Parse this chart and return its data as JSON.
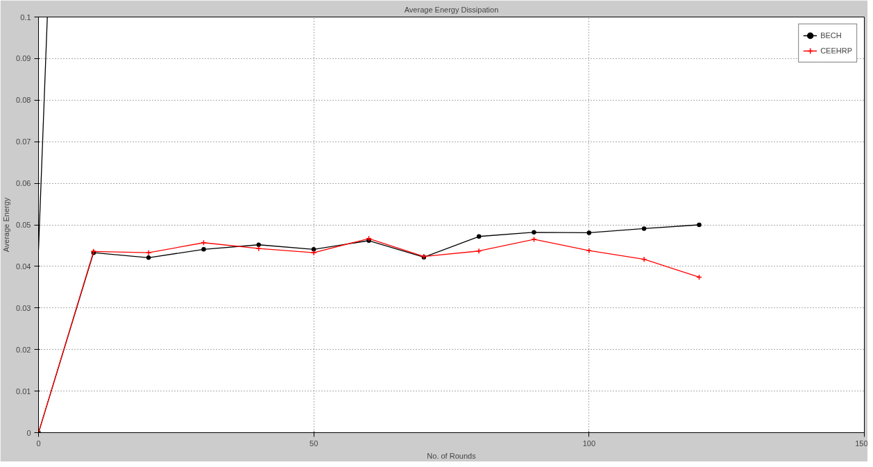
{
  "chart_data": {
    "type": "line",
    "title": "Average Energy Dissipation",
    "xlabel": "No. of Rounds",
    "ylabel": "Average Energy",
    "x": [
      0,
      10,
      20,
      30,
      40,
      50,
      60,
      70,
      80,
      90,
      100,
      110,
      120
    ],
    "series": [
      {
        "name": "BECH",
        "color": "#000000",
        "marker": "circle",
        "values": [
          0,
          0.0433,
          0.0421,
          0.0441,
          0.0452,
          0.0441,
          0.0462,
          0.0422,
          0.0472,
          0.0482,
          0.0481,
          0.0491,
          0.05
        ]
      },
      {
        "name": "CEEHRP",
        "color": "#ff0000",
        "marker": "cross",
        "values": [
          0,
          0.0436,
          0.0433,
          0.0457,
          0.0443,
          0.0433,
          0.0467,
          0.0424,
          0.0437,
          0.0465,
          0.0438,
          0.0417,
          0.0374
        ]
      },
      {
        "color": "#000000",
        "marker": "none",
        "x": [
          0,
          1.6
        ],
        "values": [
          0.044,
          0.1
        ]
      }
    ],
    "xlim": [
      0,
      150
    ],
    "xticks": [
      0,
      50,
      100,
      150
    ],
    "ylim": [
      0,
      0.1
    ],
    "yticks": [
      0,
      0.01,
      0.02,
      0.03,
      0.04,
      0.05,
      0.06,
      0.07,
      0.08,
      0.09,
      0.1
    ],
    "grid": true,
    "legend": "top right",
    "line_style": "solid"
  }
}
